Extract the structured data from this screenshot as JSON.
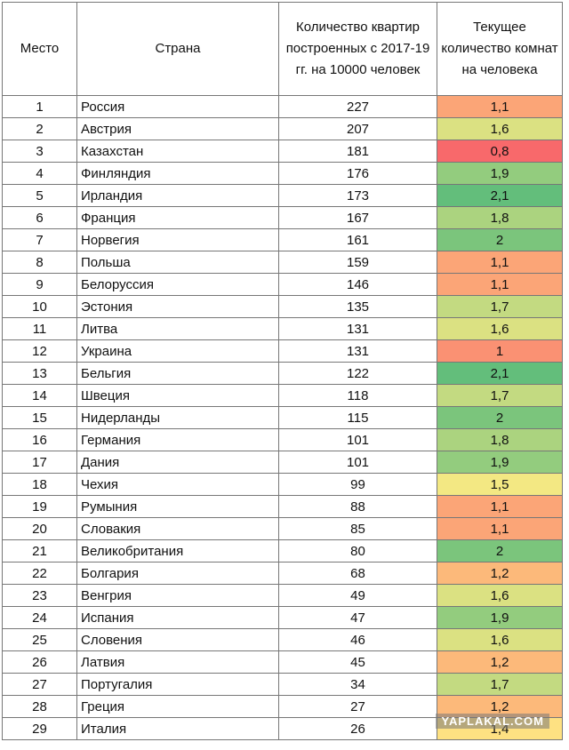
{
  "table": {
    "header": [
      "Место",
      "Страна",
      "Количество квартир построенных с 2017-19 гг. на 10000 человек",
      "Текущее количество комнат на человека"
    ],
    "rows": [
      [
        "1",
        "Россия",
        "227",
        "1,1"
      ],
      [
        "2",
        "Австрия",
        "207",
        "1,6"
      ],
      [
        "3",
        "Казахстан",
        "181",
        "0,8"
      ],
      [
        "4",
        "Финляндия",
        "176",
        "1,9"
      ],
      [
        "5",
        "Ирландия",
        "173",
        "2,1"
      ],
      [
        "6",
        "Франция",
        "167",
        "1,8"
      ],
      [
        "7",
        "Норвегия",
        "161",
        "2"
      ],
      [
        "8",
        "Польша",
        "159",
        "1,1"
      ],
      [
        "9",
        "Белоруссия",
        "146",
        "1,1"
      ],
      [
        "10",
        "Эстония",
        "135",
        "1,7"
      ],
      [
        "11",
        "Литва",
        "131",
        "1,6"
      ],
      [
        "12",
        "Украина",
        "131",
        "1"
      ],
      [
        "13",
        "Бельгия",
        "122",
        "2,1"
      ],
      [
        "14",
        "Швеция",
        "118",
        "1,7"
      ],
      [
        "15",
        "Нидерланды",
        "115",
        "2"
      ],
      [
        "16",
        "Германия",
        "101",
        "1,8"
      ],
      [
        "17",
        "Дания",
        "101",
        "1,9"
      ],
      [
        "18",
        "Чехия",
        "99",
        "1,5"
      ],
      [
        "19",
        "Румыния",
        "88",
        "1,1"
      ],
      [
        "20",
        "Словакия",
        "85",
        "1,1"
      ],
      [
        "21",
        "Великобритания",
        "80",
        "2"
      ],
      [
        "22",
        "Болгария",
        "68",
        "1,2"
      ],
      [
        "23",
        "Венгрия",
        "49",
        "1,6"
      ],
      [
        "24",
        "Испания",
        "47",
        "1,9"
      ],
      [
        "25",
        "Словения",
        "46",
        "1,6"
      ],
      [
        "26",
        "Латвия",
        "45",
        "1,2"
      ],
      [
        "27",
        "Португалия",
        "34",
        "1,7"
      ],
      [
        "28",
        "Греция",
        "27",
        "1,2"
      ],
      [
        "29",
        "Италия",
        "26",
        "1,4"
      ]
    ]
  },
  "watermark": "YAPLAKAL.COM"
}
